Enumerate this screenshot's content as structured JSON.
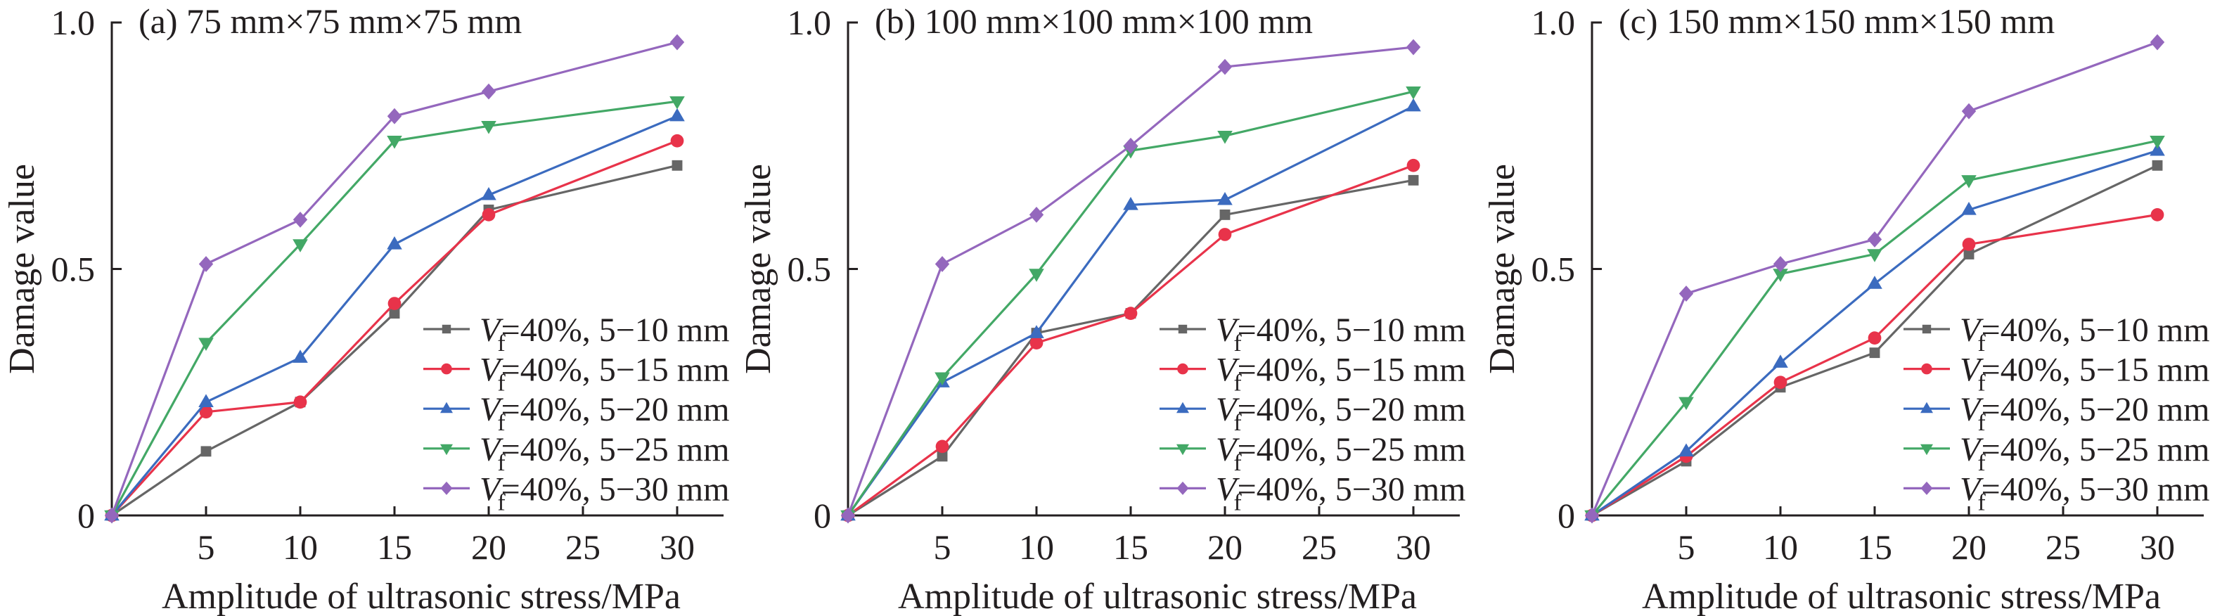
{
  "figure": {
    "description": "Damage value vs amplitude of ultrasonic stress for three specimen sizes"
  },
  "chart_data": [
    {
      "type": "line",
      "panel": "a",
      "title": "(a) 75 mm×75 mm×75 mm",
      "xlabel": "Amplitude of ultrasonic stress/MPa",
      "ylabel": "Damage value",
      "x": [
        0,
        5,
        10,
        15,
        20,
        30
      ],
      "xlim": [
        0,
        32.5
      ],
      "ylim": [
        0,
        1.0
      ],
      "xticks": [
        5,
        10,
        15,
        20,
        25,
        30
      ],
      "xtick_labels": [
        "5",
        "10",
        "15",
        "20",
        "25",
        "30"
      ],
      "yticks": [
        0,
        0.5,
        1.0
      ],
      "ytick_labels": [
        "0",
        "0.5",
        "1.0"
      ],
      "grid": false,
      "legend_position": "bottom-right",
      "series": [
        {
          "name": "Vf=40%, 5−10 mm",
          "legend": {
            "var": "V",
            "sub": "f",
            "rest": "=40%, 5−10 mm"
          },
          "color": "#666666",
          "marker": "square",
          "values": [
            0,
            0.13,
            0.23,
            0.41,
            0.62,
            0.71
          ]
        },
        {
          "name": "Vf=40%, 5−15 mm",
          "legend": {
            "var": "V",
            "sub": "f",
            "rest": "=40%, 5−15 mm"
          },
          "color": "#e8334a",
          "marker": "circle",
          "values": [
            0,
            0.21,
            0.23,
            0.43,
            0.61,
            0.76
          ]
        },
        {
          "name": "Vf=40%, 5−20 mm",
          "legend": {
            "var": "V",
            "sub": "f",
            "rest": "=40%, 5−20 mm"
          },
          "color": "#3b6bbf",
          "marker": "triangle-up",
          "values": [
            0,
            0.23,
            0.32,
            0.55,
            0.65,
            0.81
          ]
        },
        {
          "name": "Vf=40%, 5−25 mm",
          "legend": {
            "var": "V",
            "sub": "f",
            "rest": "=40%, 5−25 mm"
          },
          "color": "#43a866",
          "marker": "triangle-down",
          "values": [
            0,
            0.35,
            0.55,
            0.76,
            0.79,
            0.84
          ]
        },
        {
          "name": "Vf=40%, 5−30 mm",
          "legend": {
            "var": "V",
            "sub": "f",
            "rest": "=40%, 5−30 mm"
          },
          "color": "#9467bd",
          "marker": "diamond",
          "values": [
            0,
            0.51,
            0.6,
            0.81,
            0.86,
            0.96
          ]
        }
      ]
    },
    {
      "type": "line",
      "panel": "b",
      "title": "(b) 100 mm×100 mm×100 mm",
      "xlabel": "Amplitude of ultrasonic stress/MPa",
      "ylabel": "Damage value",
      "x": [
        0,
        5,
        10,
        15,
        20,
        30
      ],
      "xlim": [
        0,
        32.5
      ],
      "ylim": [
        0,
        1.0
      ],
      "xticks": [
        5,
        10,
        15,
        20,
        25,
        30
      ],
      "xtick_labels": [
        "5",
        "10",
        "15",
        "20",
        "25",
        "30"
      ],
      "yticks": [
        0,
        0.5,
        1.0
      ],
      "ytick_labels": [
        "0",
        "0.5",
        "1.0"
      ],
      "grid": false,
      "legend_position": "bottom-right",
      "series": [
        {
          "name": "Vf=40%, 5−10 mm",
          "legend": {
            "var": "V",
            "sub": "f",
            "rest": "=40%, 5−10 mm"
          },
          "color": "#666666",
          "marker": "square",
          "values": [
            0,
            0.12,
            0.37,
            0.41,
            0.61,
            0.68
          ]
        },
        {
          "name": "Vf=40%, 5−15 mm",
          "legend": {
            "var": "V",
            "sub": "f",
            "rest": "=40%, 5−15 mm"
          },
          "color": "#e8334a",
          "marker": "circle",
          "values": [
            0,
            0.14,
            0.35,
            0.41,
            0.57,
            0.71
          ]
        },
        {
          "name": "Vf=40%, 5−20 mm",
          "legend": {
            "var": "V",
            "sub": "f",
            "rest": "=40%, 5−20 mm"
          },
          "color": "#3b6bbf",
          "marker": "triangle-up",
          "values": [
            0,
            0.27,
            0.37,
            0.63,
            0.64,
            0.83
          ]
        },
        {
          "name": "Vf=40%, 5−25 mm",
          "legend": {
            "var": "V",
            "sub": "f",
            "rest": "=40%, 5−25 mm"
          },
          "color": "#43a866",
          "marker": "triangle-down",
          "values": [
            0,
            0.28,
            0.49,
            0.74,
            0.77,
            0.86
          ]
        },
        {
          "name": "Vf=40%, 5−30 mm",
          "legend": {
            "var": "V",
            "sub": "f",
            "rest": "=40%, 5−30 mm"
          },
          "color": "#9467bd",
          "marker": "diamond",
          "values": [
            0,
            0.51,
            0.61,
            0.75,
            0.91,
            0.95
          ]
        }
      ]
    },
    {
      "type": "line",
      "panel": "c",
      "title": "(c) 150 mm×150 mm×150 mm",
      "xlabel": "Amplitude of ultrasonic stress/MPa",
      "ylabel": "Damage value",
      "x": [
        0,
        5,
        10,
        15,
        20,
        30
      ],
      "xlim": [
        0,
        32.5
      ],
      "ylim": [
        0,
        1.0
      ],
      "xticks": [
        5,
        10,
        15,
        20,
        25,
        30
      ],
      "xtick_labels": [
        "5",
        "10",
        "15",
        "20",
        "25",
        "30"
      ],
      "yticks": [
        0,
        0.5,
        1.0
      ],
      "ytick_labels": [
        "0",
        "0.5",
        "1.0"
      ],
      "grid": false,
      "legend_position": "bottom-right",
      "series": [
        {
          "name": "Vf=40%, 5−10 mm",
          "legend": {
            "var": "V",
            "sub": "f",
            "rest": "=40%, 5−10 mm"
          },
          "color": "#666666",
          "marker": "square",
          "values": [
            0,
            0.11,
            0.26,
            0.33,
            0.53,
            0.71
          ]
        },
        {
          "name": "Vf=40%, 5−15 mm",
          "legend": {
            "var": "V",
            "sub": "f",
            "rest": "=40%, 5−15 mm"
          },
          "color": "#e8334a",
          "marker": "circle",
          "values": [
            0,
            0.12,
            0.27,
            0.36,
            0.55,
            0.61
          ]
        },
        {
          "name": "Vf=40%, 5−20 mm",
          "legend": {
            "var": "V",
            "sub": "f",
            "rest": "=40%, 5−20 mm"
          },
          "color": "#3b6bbf",
          "marker": "triangle-up",
          "values": [
            0,
            0.13,
            0.31,
            0.47,
            0.62,
            0.74
          ]
        },
        {
          "name": "Vf=40%, 5−25 mm",
          "legend": {
            "var": "V",
            "sub": "f",
            "rest": "=40%, 5−25 mm"
          },
          "color": "#43a866",
          "marker": "triangle-down",
          "values": [
            0,
            0.23,
            0.49,
            0.53,
            0.68,
            0.76
          ]
        },
        {
          "name": "Vf=40%, 5−30 mm",
          "legend": {
            "var": "V",
            "sub": "f",
            "rest": "=40%, 5−30 mm"
          },
          "color": "#9467bd",
          "marker": "diamond",
          "values": [
            0,
            0.45,
            0.51,
            0.56,
            0.82,
            0.96
          ]
        }
      ]
    }
  ]
}
